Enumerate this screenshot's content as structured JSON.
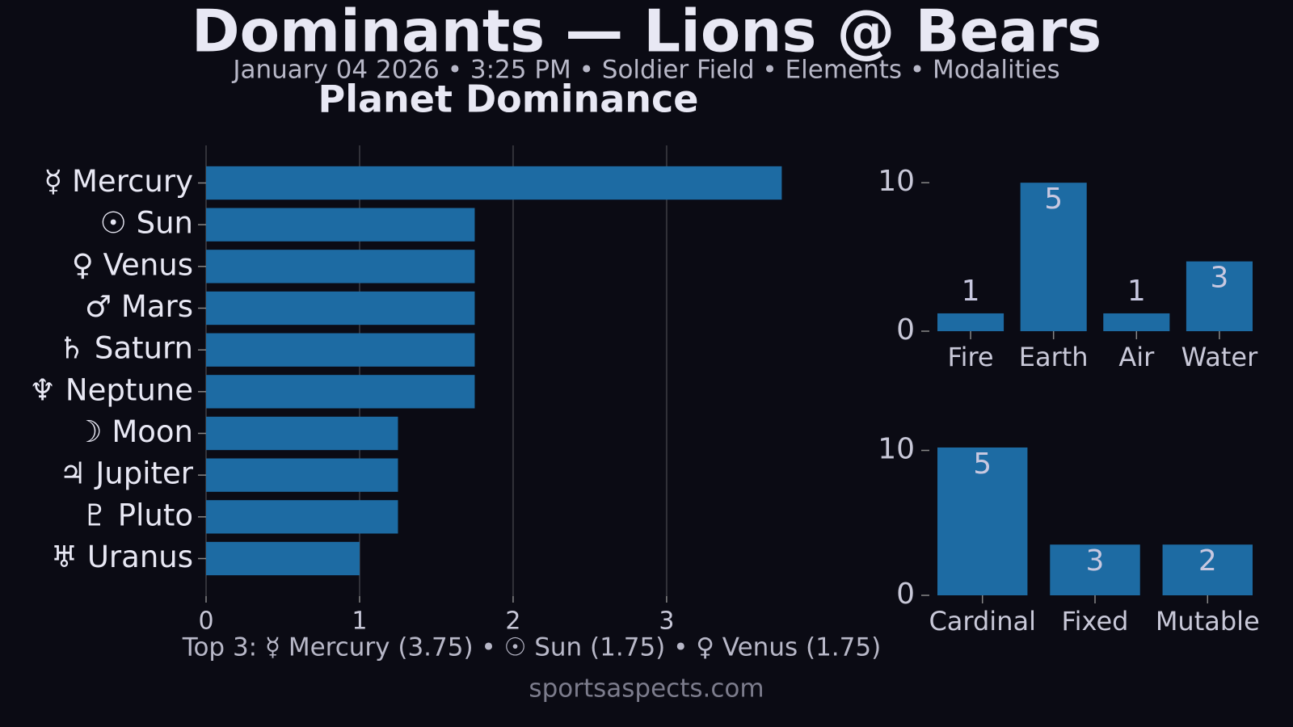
{
  "header": {
    "title": "Dominants — Lions @ Bears",
    "subtitle": "January 04 2026 • 3:25 PM • Soldier Field • Elements • Modalities"
  },
  "chart_data": [
    {
      "type": "bar",
      "horizontal": true,
      "title": "Planet Dominance",
      "categories": [
        "☿ Mercury",
        "☉ Sun",
        "♀ Venus",
        "♂ Mars",
        "♄ Saturn",
        "♆ Neptune",
        "☽ Moon",
        "♃ Jupiter",
        "♇ Pluto",
        "♅ Uranus"
      ],
      "values": [
        3.75,
        1.75,
        1.75,
        1.75,
        1.75,
        1.75,
        1.25,
        1.25,
        1.25,
        1.0
      ],
      "color": "#1d6ba3",
      "xlim": [
        0,
        3.9375
      ],
      "xticks": [
        0,
        1,
        2,
        3
      ],
      "grid": true
    },
    {
      "type": "bar",
      "categories": [
        "Fire",
        "Earth",
        "Air",
        "Water"
      ],
      "values": [
        1.2,
        10,
        1.2,
        4.7
      ],
      "counts": [
        1,
        5,
        1,
        3
      ],
      "color": "#1d6ba3",
      "ylim": [
        0,
        10.5
      ],
      "yticks": [
        0,
        10
      ]
    },
    {
      "type": "bar",
      "categories": [
        "Cardinal",
        "Fixed",
        "Mutable"
      ],
      "values": [
        10.2,
        3.5,
        3.5
      ],
      "counts": [
        5,
        3,
        2
      ],
      "color": "#1d6ba3",
      "ylim": [
        0,
        10.7
      ],
      "yticks": [
        0,
        10
      ]
    }
  ],
  "footer": {
    "top3": "Top 3: ☿ Mercury (3.75) • ☉ Sun (1.75) • ♀ Venus (1.75)",
    "source": "sportsaspects.com"
  }
}
